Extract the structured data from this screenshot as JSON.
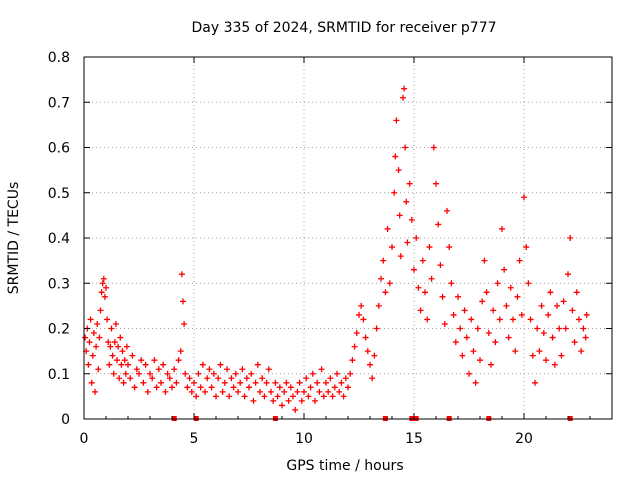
{
  "chart_data": {
    "type": "scatter",
    "title": "Day 335 of 2024, SRMTID for receiver p777",
    "xlabel": "GPS time / hours",
    "ylabel": "SRMTID / TECUs",
    "xlim": [
      0,
      24
    ],
    "ylim": [
      0,
      0.8
    ],
    "xticks": [
      0,
      5,
      10,
      15,
      20
    ],
    "yticks": [
      0,
      0.1,
      0.2,
      0.3,
      0.4,
      0.5,
      0.6,
      0.7,
      0.8
    ],
    "grid": true,
    "marker": "+",
    "color": "#ff0000",
    "gap_marker_hours": [
      4.1,
      5.1,
      8.7,
      13.7,
      14.9,
      15.1,
      16.6,
      18.4,
      22.1
    ],
    "points": [
      [
        0.05,
        0.18
      ],
      [
        0.1,
        0.15
      ],
      [
        0.15,
        0.2
      ],
      [
        0.2,
        0.12
      ],
      [
        0.25,
        0.17
      ],
      [
        0.3,
        0.22
      ],
      [
        0.35,
        0.08
      ],
      [
        0.4,
        0.14
      ],
      [
        0.45,
        0.19
      ],
      [
        0.5,
        0.06
      ],
      [
        0.55,
        0.16
      ],
      [
        0.6,
        0.21
      ],
      [
        0.65,
        0.11
      ],
      [
        0.7,
        0.18
      ],
      [
        0.75,
        0.24
      ],
      [
        0.8,
        0.28
      ],
      [
        0.85,
        0.3
      ],
      [
        0.9,
        0.31
      ],
      [
        0.95,
        0.27
      ],
      [
        1.0,
        0.29
      ],
      [
        1.05,
        0.22
      ],
      [
        1.1,
        0.17
      ],
      [
        1.15,
        0.12
      ],
      [
        1.2,
        0.16
      ],
      [
        1.25,
        0.2
      ],
      [
        1.3,
        0.14
      ],
      [
        1.35,
        0.1
      ],
      [
        1.4,
        0.17
      ],
      [
        1.45,
        0.21
      ],
      [
        1.5,
        0.13
      ],
      [
        1.55,
        0.16
      ],
      [
        1.6,
        0.09
      ],
      [
        1.65,
        0.18
      ],
      [
        1.7,
        0.12
      ],
      [
        1.75,
        0.15
      ],
      [
        1.8,
        0.08
      ],
      [
        1.85,
        0.13
      ],
      [
        1.9,
        0.1
      ],
      [
        1.95,
        0.16
      ],
      [
        2.0,
        0.12
      ],
      [
        2.1,
        0.09
      ],
      [
        2.2,
        0.14
      ],
      [
        2.3,
        0.07
      ],
      [
        2.4,
        0.11
      ],
      [
        2.5,
        0.1
      ],
      [
        2.6,
        0.13
      ],
      [
        2.7,
        0.08
      ],
      [
        2.8,
        0.12
      ],
      [
        2.9,
        0.06
      ],
      [
        3.0,
        0.1
      ],
      [
        3.1,
        0.09
      ],
      [
        3.2,
        0.13
      ],
      [
        3.3,
        0.07
      ],
      [
        3.4,
        0.11
      ],
      [
        3.5,
        0.08
      ],
      [
        3.6,
        0.12
      ],
      [
        3.7,
        0.06
      ],
      [
        3.8,
        0.1
      ],
      [
        3.9,
        0.09
      ],
      [
        4.0,
        0.07
      ],
      [
        4.1,
        0.11
      ],
      [
        4.2,
        0.08
      ],
      [
        4.3,
        0.13
      ],
      [
        4.4,
        0.15
      ],
      [
        4.45,
        0.32
      ],
      [
        4.5,
        0.26
      ],
      [
        4.55,
        0.21
      ],
      [
        4.6,
        0.1
      ],
      [
        4.7,
        0.07
      ],
      [
        4.8,
        0.09
      ],
      [
        4.9,
        0.06
      ],
      [
        5.0,
        0.08
      ],
      [
        5.1,
        0.05
      ],
      [
        5.2,
        0.1
      ],
      [
        5.3,
        0.07
      ],
      [
        5.4,
        0.12
      ],
      [
        5.5,
        0.06
      ],
      [
        5.6,
        0.09
      ],
      [
        5.7,
        0.11
      ],
      [
        5.8,
        0.07
      ],
      [
        5.9,
        0.1
      ],
      [
        6.0,
        0.05
      ],
      [
        6.1,
        0.09
      ],
      [
        6.2,
        0.12
      ],
      [
        6.3,
        0.06
      ],
      [
        6.4,
        0.08
      ],
      [
        6.5,
        0.11
      ],
      [
        6.6,
        0.05
      ],
      [
        6.7,
        0.09
      ],
      [
        6.8,
        0.07
      ],
      [
        6.9,
        0.1
      ],
      [
        7.0,
        0.06
      ],
      [
        7.1,
        0.08
      ],
      [
        7.2,
        0.11
      ],
      [
        7.3,
        0.05
      ],
      [
        7.4,
        0.09
      ],
      [
        7.5,
        0.07
      ],
      [
        7.6,
        0.1
      ],
      [
        7.7,
        0.04
      ],
      [
        7.8,
        0.08
      ],
      [
        7.9,
        0.12
      ],
      [
        8.0,
        0.06
      ],
      [
        8.1,
        0.09
      ],
      [
        8.2,
        0.05
      ],
      [
        8.3,
        0.08
      ],
      [
        8.4,
        0.11
      ],
      [
        8.5,
        0.06
      ],
      [
        8.6,
        0.04
      ],
      [
        8.7,
        0.08
      ],
      [
        8.8,
        0.05
      ],
      [
        8.9,
        0.07
      ],
      [
        9.0,
        0.03
      ],
      [
        9.1,
        0.06
      ],
      [
        9.2,
        0.08
      ],
      [
        9.3,
        0.04
      ],
      [
        9.4,
        0.07
      ],
      [
        9.5,
        0.05
      ],
      [
        9.6,
        0.02
      ],
      [
        9.7,
        0.06
      ],
      [
        9.8,
        0.08
      ],
      [
        9.9,
        0.04
      ],
      [
        10.0,
        0.06
      ],
      [
        10.1,
        0.09
      ],
      [
        10.2,
        0.05
      ],
      [
        10.3,
        0.07
      ],
      [
        10.4,
        0.1
      ],
      [
        10.5,
        0.04
      ],
      [
        10.6,
        0.08
      ],
      [
        10.7,
        0.06
      ],
      [
        10.8,
        0.11
      ],
      [
        10.9,
        0.05
      ],
      [
        11.0,
        0.08
      ],
      [
        11.1,
        0.06
      ],
      [
        11.2,
        0.09
      ],
      [
        11.3,
        0.05
      ],
      [
        11.4,
        0.07
      ],
      [
        11.5,
        0.1
      ],
      [
        11.6,
        0.06
      ],
      [
        11.7,
        0.08
      ],
      [
        11.8,
        0.05
      ],
      [
        11.9,
        0.09
      ],
      [
        12.0,
        0.07
      ],
      [
        12.1,
        0.1
      ],
      [
        12.2,
        0.13
      ],
      [
        12.3,
        0.16
      ],
      [
        12.4,
        0.19
      ],
      [
        12.5,
        0.23
      ],
      [
        12.6,
        0.25
      ],
      [
        12.7,
        0.22
      ],
      [
        12.8,
        0.18
      ],
      [
        12.9,
        0.15
      ],
      [
        13.0,
        0.12
      ],
      [
        13.1,
        0.09
      ],
      [
        13.2,
        0.14
      ],
      [
        13.3,
        0.2
      ],
      [
        13.4,
        0.25
      ],
      [
        13.5,
        0.31
      ],
      [
        13.6,
        0.35
      ],
      [
        13.7,
        0.28
      ],
      [
        13.8,
        0.42
      ],
      [
        13.9,
        0.3
      ],
      [
        14.0,
        0.38
      ],
      [
        14.1,
        0.5
      ],
      [
        14.15,
        0.58
      ],
      [
        14.2,
        0.66
      ],
      [
        14.3,
        0.55
      ],
      [
        14.35,
        0.45
      ],
      [
        14.4,
        0.36
      ],
      [
        14.5,
        0.71
      ],
      [
        14.55,
        0.73
      ],
      [
        14.6,
        0.6
      ],
      [
        14.65,
        0.48
      ],
      [
        14.7,
        0.39
      ],
      [
        14.8,
        0.52
      ],
      [
        14.9,
        0.44
      ],
      [
        15.0,
        0.33
      ],
      [
        15.1,
        0.4
      ],
      [
        15.2,
        0.29
      ],
      [
        15.3,
        0.24
      ],
      [
        15.4,
        0.35
      ],
      [
        15.5,
        0.28
      ],
      [
        15.6,
        0.22
      ],
      [
        15.7,
        0.38
      ],
      [
        15.8,
        0.31
      ],
      [
        15.9,
        0.6
      ],
      [
        16.0,
        0.52
      ],
      [
        16.1,
        0.43
      ],
      [
        16.2,
        0.34
      ],
      [
        16.3,
        0.27
      ],
      [
        16.4,
        0.21
      ],
      [
        16.5,
        0.46
      ],
      [
        16.6,
        0.38
      ],
      [
        16.7,
        0.3
      ],
      [
        16.8,
        0.23
      ],
      [
        16.9,
        0.17
      ],
      [
        17.0,
        0.27
      ],
      [
        17.1,
        0.2
      ],
      [
        17.2,
        0.14
      ],
      [
        17.3,
        0.24
      ],
      [
        17.4,
        0.18
      ],
      [
        17.5,
        0.1
      ],
      [
        17.6,
        0.22
      ],
      [
        17.7,
        0.15
      ],
      [
        17.8,
        0.08
      ],
      [
        17.9,
        0.2
      ],
      [
        18.0,
        0.13
      ],
      [
        18.1,
        0.26
      ],
      [
        18.2,
        0.35
      ],
      [
        18.3,
        0.28
      ],
      [
        18.4,
        0.19
      ],
      [
        18.5,
        0.12
      ],
      [
        18.6,
        0.24
      ],
      [
        18.7,
        0.17
      ],
      [
        18.8,
        0.3
      ],
      [
        18.9,
        0.22
      ],
      [
        19.0,
        0.42
      ],
      [
        19.1,
        0.33
      ],
      [
        19.2,
        0.25
      ],
      [
        19.3,
        0.18
      ],
      [
        19.4,
        0.29
      ],
      [
        19.5,
        0.22
      ],
      [
        19.6,
        0.15
      ],
      [
        19.7,
        0.27
      ],
      [
        19.8,
        0.35
      ],
      [
        19.9,
        0.23
      ],
      [
        20.0,
        0.49
      ],
      [
        20.1,
        0.38
      ],
      [
        20.2,
        0.3
      ],
      [
        20.3,
        0.22
      ],
      [
        20.4,
        0.14
      ],
      [
        20.5,
        0.08
      ],
      [
        20.6,
        0.2
      ],
      [
        20.7,
        0.15
      ],
      [
        20.8,
        0.25
      ],
      [
        20.9,
        0.19
      ],
      [
        21.0,
        0.13
      ],
      [
        21.1,
        0.23
      ],
      [
        21.2,
        0.28
      ],
      [
        21.3,
        0.18
      ],
      [
        21.4,
        0.12
      ],
      [
        21.5,
        0.25
      ],
      [
        21.6,
        0.2
      ],
      [
        21.7,
        0.14
      ],
      [
        21.8,
        0.26
      ],
      [
        21.9,
        0.2
      ],
      [
        22.0,
        0.32
      ],
      [
        22.1,
        0.4
      ],
      [
        22.2,
        0.24
      ],
      [
        22.3,
        0.17
      ],
      [
        22.4,
        0.28
      ],
      [
        22.5,
        0.22
      ],
      [
        22.6,
        0.15
      ],
      [
        22.7,
        0.2
      ],
      [
        22.8,
        0.18
      ],
      [
        22.85,
        0.23
      ]
    ]
  }
}
